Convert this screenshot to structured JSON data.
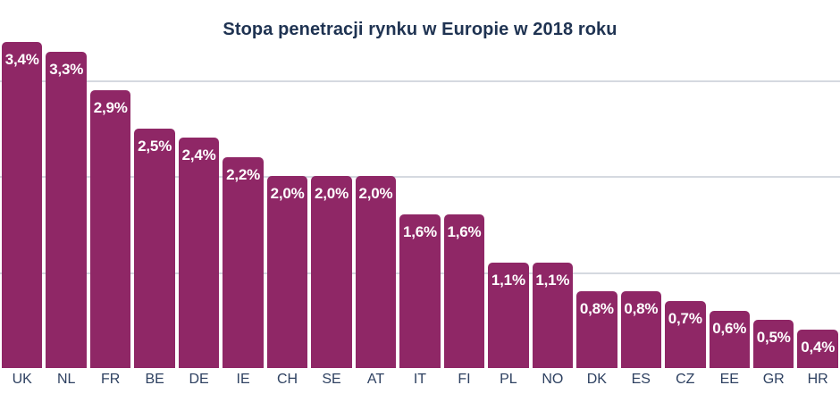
{
  "chart_data": {
    "type": "bar",
    "title": "Stopa penetracji rynku w Europie w 2018 roku",
    "categories": [
      "UK",
      "NL",
      "FR",
      "BE",
      "DE",
      "IE",
      "CH",
      "SE",
      "AT",
      "IT",
      "FI",
      "PL",
      "NO",
      "DK",
      "ES",
      "CZ",
      "EE",
      "GR",
      "HR"
    ],
    "values": [
      3.4,
      3.3,
      2.9,
      2.5,
      2.4,
      2.2,
      2.0,
      2.0,
      2.0,
      1.6,
      1.6,
      1.1,
      1.1,
      0.8,
      0.8,
      0.7,
      0.6,
      0.5,
      0.4
    ],
    "value_labels": [
      "3,4%",
      "3,3%",
      "2,9%",
      "2,5%",
      "2,4%",
      "2,2%",
      "2,0%",
      "2,0%",
      "2,0%",
      "1,6%",
      "1,6%",
      "1,1%",
      "1,1%",
      "0,8%",
      "0,8%",
      "0,7%",
      "0,6%",
      "0,5%",
      "0,4%"
    ],
    "unit": "%",
    "xlabel": "",
    "ylabel": "",
    "ylim": [
      0,
      3.85
    ],
    "gridlines_at": [
      1,
      2,
      3
    ],
    "grid": "horizontal",
    "legend": "none",
    "value_labels_position": "inside-top"
  },
  "colors": {
    "bar": "#8F2766",
    "title": "#1F3352",
    "axis_label": "#2E4161",
    "gridline": "#D5D9E0",
    "value_label": "#FFFFFF",
    "background": "#FFFFFF"
  }
}
